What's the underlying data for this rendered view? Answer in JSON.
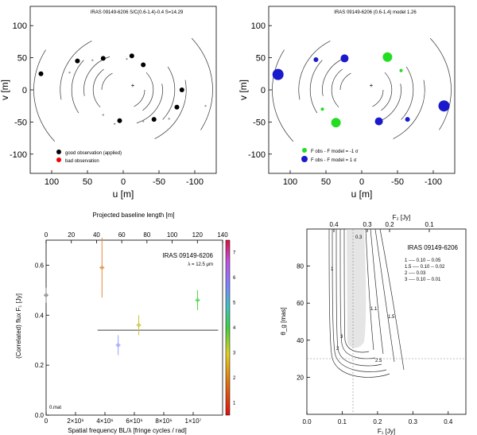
{
  "uv_left": {
    "title": "IRAS 09149-6206  S/C(0.6-1.4)-0.4  S=14.29",
    "xlabel": "u [m]",
    "ylabel": "v [m]",
    "xticks": [
      "100",
      "50",
      "0",
      "-50",
      "-100"
    ],
    "yticks": [
      "100",
      "50",
      "0",
      "-50",
      "-100"
    ],
    "legend": [
      "good observation (applied)",
      "bad observation"
    ]
  },
  "uv_right": {
    "title": "IRAS 09149-6206 (0.6-1.4)  model 1.26",
    "xlabel": "u [m]",
    "ylabel": "v [m]",
    "xticks": [
      "100",
      "50",
      "0",
      "-50",
      "-100"
    ],
    "yticks": [
      "100",
      "50",
      "0",
      "-50",
      "-100"
    ],
    "legend": [
      "F obs - F model = -1 σ",
      "F obs - F model = 1 σ"
    ]
  },
  "visplot": {
    "title": "IRAS 09149-6206",
    "subtitle": "λ = 12.5 μm",
    "top_axis_label": "Projected baseline length [m]",
    "top_ticks": [
      "0",
      "20",
      "40",
      "60",
      "80",
      "100",
      "120",
      "140"
    ],
    "xlabel": "Spatial frequency BL/λ [fringe cycles / rad]",
    "xticks": [
      "0",
      "2×10⁶",
      "4×10⁶",
      "6×10⁶",
      "8×10⁶",
      "1×10⁷"
    ],
    "ylabel": "(Correlated) flux F₁ [Jy]",
    "yticks": [
      "0.0",
      "0.2",
      "0.4",
      "0.6"
    ],
    "colorbar_ticks": [
      "1",
      "2",
      "3",
      "4",
      "5",
      "6",
      "7"
    ],
    "corner_label": "0.mat"
  },
  "contour": {
    "title": "IRAS 09149-6206",
    "top_axis_label": "F₂ [Jy]",
    "top_ticks": [
      "0.4",
      "0.3",
      "0.2",
      "0.1"
    ],
    "xlabel": "F₁ [Jy]",
    "xticks": [
      "0.0",
      "0.1",
      "0.2",
      "0.3",
      "0.4"
    ],
    "ylabel": "θ_g [mas]",
    "yticks": [
      "20",
      "40",
      "60",
      "80"
    ],
    "contour_labels": [
      "0.3",
      "1",
      "2",
      "3",
      "2.5",
      "1.1",
      "1.5"
    ],
    "legend_lines": [
      "1 ---- 0.10 -- 0.05",
      "1.5 ---- 0.10 -- 0.02",
      "2 ---- 0.03",
      "3 ---- 0.10 -- 0.01"
    ]
  },
  "chart_data": [
    {
      "type": "scatter",
      "panel": "uv-coverage-good-bad",
      "xlim": [
        130,
        -130
      ],
      "ylim": [
        -130,
        130
      ],
      "points_good": [
        [
          115,
          25
        ],
        [
          64,
          45
        ],
        [
          28,
          49
        ],
        [
          -12,
          53
        ],
        [
          -28,
          39
        ],
        [
          -43,
          -46
        ],
        [
          5,
          -48
        ],
        [
          -75,
          -27
        ],
        [
          -82,
          0
        ]
      ],
      "points_mirror": [
        [
          -115,
          -25
        ],
        [
          -64,
          -45
        ],
        [
          -28,
          -49
        ],
        [
          12,
          -53
        ],
        [
          28,
          -39
        ],
        [
          43,
          46
        ],
        [
          -5,
          48
        ],
        [
          75,
          27
        ]
      ]
    },
    {
      "type": "scatter",
      "panel": "uv-coverage-residuals",
      "xlim": [
        130,
        -130
      ],
      "ylim": [
        -130,
        130
      ],
      "points_blue": [
        [
          117,
          24,
          7
        ],
        [
          64,
          47,
          3
        ],
        [
          24,
          49,
          5
        ],
        [
          -115,
          -25,
          7
        ],
        [
          -64,
          -46,
          3
        ],
        [
          -24,
          -49,
          5
        ]
      ],
      "points_green": [
        [
          -36,
          51,
          6
        ],
        [
          36,
          -51,
          6
        ],
        [
          -55,
          30,
          2
        ],
        [
          55,
          -30,
          2
        ]
      ]
    },
    {
      "type": "scatter",
      "panel": "correlated-flux",
      "xlim": [
        0,
        12000000.0
      ],
      "ylim": [
        0,
        0.7
      ],
      "points": [
        {
          "x": 0,
          "y": 0.48,
          "err": 0.03,
          "color": "#888"
        },
        {
          "x": 3800000.0,
          "y": 0.59,
          "err": 0.12,
          "color": "#e08f3a"
        },
        {
          "x": 4900000.0,
          "y": 0.28,
          "err": 0.04,
          "color": "#9aa0ff"
        },
        {
          "x": 6300000.0,
          "y": 0.36,
          "err": 0.04,
          "color": "#c9c43a"
        },
        {
          "x": 10300000.0,
          "y": 0.46,
          "err": 0.04,
          "color": "#4cd44c"
        }
      ],
      "model_line": {
        "x0": 3500000.0,
        "x1": 11700000.0,
        "y": 0.34
      }
    }
  ]
}
